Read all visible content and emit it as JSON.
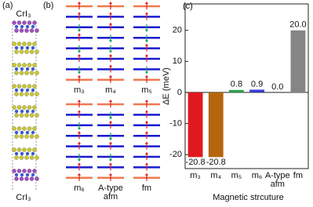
{
  "panel_labels": [
    "(a)",
    "(b)",
    "(c)"
  ],
  "structure_labels": [
    "CrI₃",
    "CrI₃"
  ],
  "config_labels": [
    "m₃",
    "m₄",
    "m₅",
    "m₆",
    "A-type afm",
    "fm"
  ],
  "chart_data": {
    "type": "bar",
    "categories": [
      "m₃",
      "m₄",
      "m₅",
      "m₆",
      "A-type afm",
      "fm"
    ],
    "values": [
      -20.8,
      -20.8,
      0.8,
      0.9,
      0.0,
      20.0
    ],
    "value_labels": [
      "-20.8",
      "-20.8",
      "0.8",
      "0.9",
      "0.0",
      "20.0"
    ],
    "colors": [
      "#e0191e",
      "#b5650d",
      "#2e9e4c",
      "#3b3bd6",
      "#000000",
      "#858585"
    ],
    "ylabel": "ΔE (meV)",
    "xlabel": "Magnetic strcuture",
    "ylim": [
      -24.5,
      28.5
    ],
    "yticks": [
      -20,
      -10,
      0,
      10,
      20
    ]
  }
}
